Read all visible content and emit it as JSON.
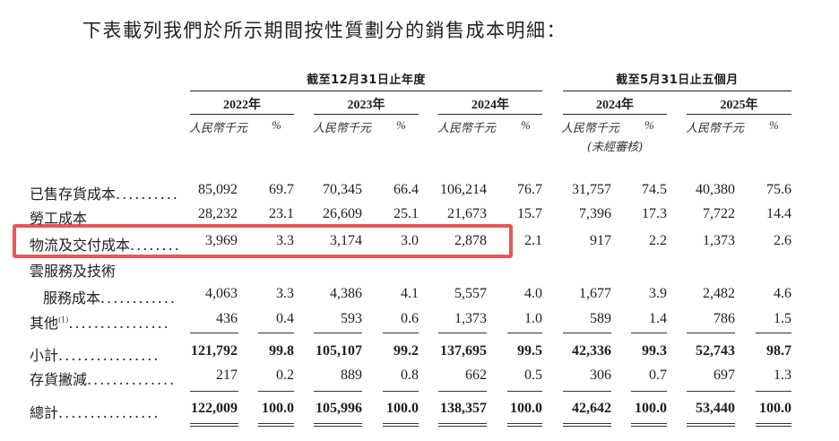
{
  "intro": "下表載列我們於所示期間按性質劃分的銷售成本明細：",
  "groups": {
    "annual": "截至12月31日止年度",
    "five_month": "截至5月31日止五個月"
  },
  "years": [
    "2022年",
    "2023年",
    "2024年",
    "2024年",
    "2025年"
  ],
  "units": {
    "rmb": "人民幣千元",
    "pct": "%",
    "unaudited": "(未經審核)"
  },
  "rows": [
    {
      "label": "已售存貨成本",
      "dots": "..........",
      "values": [
        "85,092",
        "69.7",
        "70,345",
        "66.4",
        "106,214",
        "76.7",
        "31,757",
        "74.5",
        "40,380",
        "75.6"
      ]
    },
    {
      "label": "勞工成本",
      "dots": "",
      "values": [
        "28,232",
        "23.1",
        "26,609",
        "25.1",
        "21,673",
        "15.7",
        "7,396",
        "17.3",
        "7,722",
        "14.4"
      ]
    },
    {
      "label": "物流及交付成本",
      "dots": "........",
      "values": [
        "3,969",
        "3.3",
        "3,174",
        "3.0",
        "2,878",
        "2.1",
        "917",
        "2.2",
        "1,373",
        "2.6"
      ]
    },
    {
      "label": "雲服務及技術",
      "dots": "",
      "values": []
    },
    {
      "label": "服務成本",
      "dots": "............",
      "values": [
        "4,063",
        "3.3",
        "4,386",
        "4.1",
        "5,557",
        "4.0",
        "1,677",
        "3.9",
        "2,482",
        "4.6"
      ]
    },
    {
      "label": "其他",
      "sup": "(1)",
      "dots": "................",
      "values": [
        "436",
        "0.4",
        "593",
        "0.6",
        "1,373",
        "1.0",
        "589",
        "1.4",
        "786",
        "1.5"
      ]
    },
    {
      "label": "小計",
      "dots": "................",
      "values": [
        "121,792",
        "99.8",
        "105,107",
        "99.2",
        "137,695",
        "99.5",
        "42,336",
        "99.3",
        "52,743",
        "98.7"
      ]
    },
    {
      "label": "存貨撇減",
      "dots": "..............",
      "values": [
        "217",
        "0.2",
        "889",
        "0.8",
        "662",
        "0.5",
        "306",
        "0.7",
        "697",
        "1.3"
      ]
    },
    {
      "label": "總計",
      "dots": "................",
      "values": [
        "122,009",
        "100.0",
        "105,996",
        "100.0",
        "138,357",
        "100.0",
        "42,642",
        "100.0",
        "53,440",
        "100.0"
      ]
    }
  ],
  "colors": {
    "highlight": "#e05a5a",
    "text": "#1e1e1e"
  }
}
